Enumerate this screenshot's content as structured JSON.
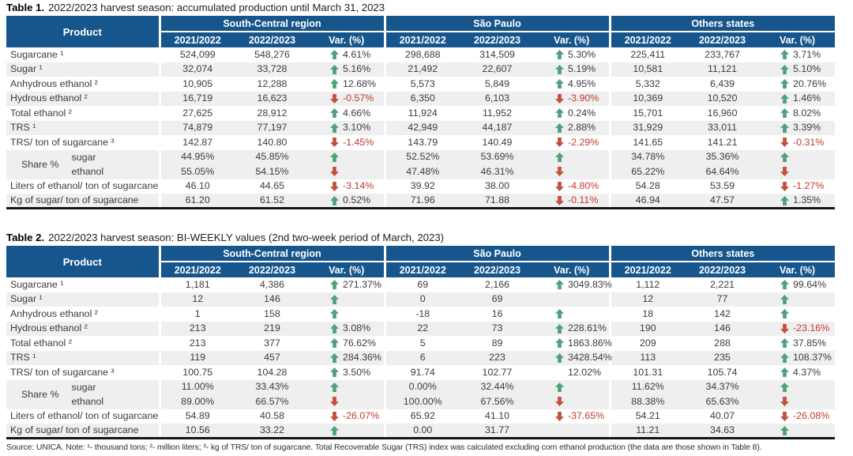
{
  "colors": {
    "header_blue": "#17568C",
    "up_green": "#4FA17D",
    "down_red": "#C1513C",
    "neg_red": "#C13A30",
    "row_gray": "#EFEFEF"
  },
  "footer": {
    "source_note": "Source: UNICA. Note: ¹- thousand tons; ²- million liters; ³- kg of TRS/ ton of sugarcane. Total Recoverable Sugar (TRS) index was calculated excluding corn ethanol production (the data are those shown in Table 8)."
  },
  "icons": {
    "up": "up-arrow-icon",
    "down": "down-arrow-icon"
  },
  "tables": [
    {
      "title_prefix": "Table 1.",
      "title_rest": "2022/2023 harvest season: accumulated production until March 31, 2023",
      "product_header": "Product",
      "region_groups": [
        "South-Central region",
        "São Paulo",
        "Others states"
      ],
      "year_headers": [
        "2021/2022",
        "2022/2023",
        "Var. (%)"
      ],
      "rows": [
        {
          "label": "Sugarcane ¹",
          "cells": [
            {
              "v1": "524,099",
              "v2": "548,276",
              "dir": "up",
              "var": "4.61%"
            },
            {
              "v1": "298,688",
              "v2": "314,509",
              "dir": "up",
              "var": "5.30%"
            },
            {
              "v1": "225,411",
              "v2": "233,767",
              "dir": "up",
              "var": "3.71%"
            }
          ]
        },
        {
          "label": "Sugar ¹",
          "cells": [
            {
              "v1": "32,074",
              "v2": "33,728",
              "dir": "up",
              "var": "5.16%"
            },
            {
              "v1": "21,492",
              "v2": "22,607",
              "dir": "up",
              "var": "5.19%"
            },
            {
              "v1": "10,581",
              "v2": "11,121",
              "dir": "up",
              "var": "5.10%"
            }
          ]
        },
        {
          "label": "Anhydrous ethanol ²",
          "cells": [
            {
              "v1": "10,905",
              "v2": "12,288",
              "dir": "up",
              "var": "12.68%"
            },
            {
              "v1": "5,573",
              "v2": "5,849",
              "dir": "up",
              "var": "4.95%"
            },
            {
              "v1": "5,332",
              "v2": "6,439",
              "dir": "up",
              "var": "20.76%"
            }
          ]
        },
        {
          "label": "Hydrous ethanol ²",
          "cells": [
            {
              "v1": "16,719",
              "v2": "16,623",
              "dir": "down",
              "var": "-0.57%"
            },
            {
              "v1": "6,350",
              "v2": "6,103",
              "dir": "down",
              "var": "-3.90%"
            },
            {
              "v1": "10,369",
              "v2": "10,520",
              "dir": "up",
              "var": "1.46%"
            }
          ]
        },
        {
          "label": "Total ethanol ²",
          "cells": [
            {
              "v1": "27,625",
              "v2": "28,912",
              "dir": "up",
              "var": "4.66%"
            },
            {
              "v1": "11,924",
              "v2": "11,952",
              "dir": "up",
              "var": "0.24%"
            },
            {
              "v1": "15,701",
              "v2": "16,960",
              "dir": "up",
              "var": "8.02%"
            }
          ]
        },
        {
          "label": "TRS ¹",
          "cells": [
            {
              "v1": "74,879",
              "v2": "77,197",
              "dir": "up",
              "var": "3.10%"
            },
            {
              "v1": "42,949",
              "v2": "44,187",
              "dir": "up",
              "var": "2.88%"
            },
            {
              "v1": "31,929",
              "v2": "33,011",
              "dir": "up",
              "var": "3.39%"
            }
          ]
        },
        {
          "label": "TRS/ ton of sugarcane ³",
          "cells": [
            {
              "v1": "142.87",
              "v2": "140.80",
              "dir": "down",
              "var": "-1.45%"
            },
            {
              "v1": "143.79",
              "v2": "140.49",
              "dir": "down",
              "var": "-2.29%"
            },
            {
              "v1": "141.65",
              "v2": "141.21",
              "dir": "down",
              "var": "-0.31%"
            }
          ]
        },
        {
          "label": "",
          "group_label": "Share %",
          "sub_label": "sugar",
          "cells": [
            {
              "v1": "44.95%",
              "v2": "45.85%",
              "dir": "up",
              "var": ""
            },
            {
              "v1": "52.52%",
              "v2": "53.69%",
              "dir": "up",
              "var": ""
            },
            {
              "v1": "34.78%",
              "v2": "35.36%",
              "dir": "up",
              "var": ""
            }
          ]
        },
        {
          "label": "",
          "sub_label": "ethanol",
          "cells": [
            {
              "v1": "55.05%",
              "v2": "54.15%",
              "dir": "down",
              "var": ""
            },
            {
              "v1": "47.48%",
              "v2": "46.31%",
              "dir": "down",
              "var": ""
            },
            {
              "v1": "65.22%",
              "v2": "64.64%",
              "dir": "down",
              "var": ""
            }
          ]
        },
        {
          "label": "Liters of ethanol/ ton of sugarcane",
          "cells": [
            {
              "v1": "46.10",
              "v2": "44.65",
              "dir": "down",
              "var": "-3.14%"
            },
            {
              "v1": "39.92",
              "v2": "38.00",
              "dir": "down",
              "var": "-4.80%"
            },
            {
              "v1": "54.28",
              "v2": "53.59",
              "dir": "down",
              "var": "-1.27%"
            }
          ]
        },
        {
          "label": "Kg of sugar/ ton of sugarcane",
          "cells": [
            {
              "v1": "61.20",
              "v2": "61.52",
              "dir": "up",
              "var": "0.52%"
            },
            {
              "v1": "71.96",
              "v2": "71.88",
              "dir": "down",
              "var": "-0.11%"
            },
            {
              "v1": "46.94",
              "v2": "47.57",
              "dir": "up",
              "var": "1.35%"
            }
          ]
        }
      ]
    },
    {
      "title_prefix": "Table 2.",
      "title_rest": "2022/2023 harvest season: BI-WEEKLY values (2nd two-week period of March, 2023)",
      "product_header": "Product",
      "region_groups": [
        "South-Central region",
        "São Paulo",
        "Others states"
      ],
      "year_headers": [
        "2021/2022",
        "2022/2023",
        "Var. (%)"
      ],
      "rows": [
        {
          "label": "Sugarcane ¹",
          "cells": [
            {
              "v1": "1,181",
              "v2": "4,386",
              "dir": "up",
              "var": "271.37%"
            },
            {
              "v1": "69",
              "v2": "2,166",
              "dir": "up",
              "var": "3049.83%"
            },
            {
              "v1": "1,112",
              "v2": "2,221",
              "dir": "up",
              "var": "99.64%"
            }
          ]
        },
        {
          "label": "Sugar ¹",
          "cells": [
            {
              "v1": "12",
              "v2": "146",
              "dir": "up",
              "var": ""
            },
            {
              "v1": "0",
              "v2": "69",
              "dir": "none",
              "var": ""
            },
            {
              "v1": "12",
              "v2": "77",
              "dir": "up",
              "var": ""
            }
          ]
        },
        {
          "label": "Anhydrous ethanol ²",
          "cells": [
            {
              "v1": "1",
              "v2": "158",
              "dir": "up",
              "var": ""
            },
            {
              "v1": "-18",
              "v2": "16",
              "dir": "up",
              "var": ""
            },
            {
              "v1": "18",
              "v2": "142",
              "dir": "up",
              "var": ""
            }
          ]
        },
        {
          "label": "Hydrous ethanol ²",
          "cells": [
            {
              "v1": "213",
              "v2": "219",
              "dir": "up",
              "var": "3.08%"
            },
            {
              "v1": "22",
              "v2": "73",
              "dir": "up",
              "var": "228.61%"
            },
            {
              "v1": "190",
              "v2": "146",
              "dir": "down",
              "var": "-23.16%"
            }
          ]
        },
        {
          "label": "Total ethanol ²",
          "cells": [
            {
              "v1": "213",
              "v2": "377",
              "dir": "up",
              "var": "76.62%"
            },
            {
              "v1": "5",
              "v2": "89",
              "dir": "up",
              "var": "1863.86%"
            },
            {
              "v1": "209",
              "v2": "288",
              "dir": "up",
              "var": "37.85%"
            }
          ]
        },
        {
          "label": "TRS ¹",
          "cells": [
            {
              "v1": "119",
              "v2": "457",
              "dir": "up",
              "var": "284.36%"
            },
            {
              "v1": "6",
              "v2": "223",
              "dir": "up",
              "var": "3428.54%"
            },
            {
              "v1": "113",
              "v2": "235",
              "dir": "up",
              "var": "108.37%"
            }
          ]
        },
        {
          "label": "TRS/ ton of sugarcane ³",
          "cells": [
            {
              "v1": "100.75",
              "v2": "104.28",
              "dir": "up",
              "var": "3.50%"
            },
            {
              "v1": "91.74",
              "v2": "102.77",
              "dir": "none",
              "var": "12.02%"
            },
            {
              "v1": "101.31",
              "v2": "105.74",
              "dir": "up",
              "var": "4.37%"
            }
          ]
        },
        {
          "label": "",
          "group_label": "Share %",
          "sub_label": "sugar",
          "cells": [
            {
              "v1": "11.00%",
              "v2": "33.43%",
              "dir": "up",
              "var": ""
            },
            {
              "v1": "0.00%",
              "v2": "32.44%",
              "dir": "up",
              "var": ""
            },
            {
              "v1": "11.62%",
              "v2": "34.37%",
              "dir": "up",
              "var": ""
            }
          ]
        },
        {
          "label": "",
          "sub_label": "ethanol",
          "cells": [
            {
              "v1": "89.00%",
              "v2": "66.57%",
              "dir": "down",
              "var": ""
            },
            {
              "v1": "100.00%",
              "v2": "67.56%",
              "dir": "down",
              "var": ""
            },
            {
              "v1": "88.38%",
              "v2": "65.63%",
              "dir": "down",
              "var": ""
            }
          ]
        },
        {
          "label": "Liters of ethanol/ ton of sugarcane",
          "cells": [
            {
              "v1": "54.89",
              "v2": "40.58",
              "dir": "down",
              "var": "-26.07%"
            },
            {
              "v1": "65.92",
              "v2": "41.10",
              "dir": "down",
              "var": "-37.65%"
            },
            {
              "v1": "54.21",
              "v2": "40.07",
              "dir": "down",
              "var": "-26.08%"
            }
          ]
        },
        {
          "label": "Kg of sugar/ ton of sugarcane",
          "cells": [
            {
              "v1": "10.56",
              "v2": "33.22",
              "dir": "up",
              "var": ""
            },
            {
              "v1": "0.00",
              "v2": "31.77",
              "dir": "none",
              "var": ""
            },
            {
              "v1": "11.21",
              "v2": "34.63",
              "dir": "up",
              "var": ""
            }
          ]
        }
      ]
    }
  ]
}
